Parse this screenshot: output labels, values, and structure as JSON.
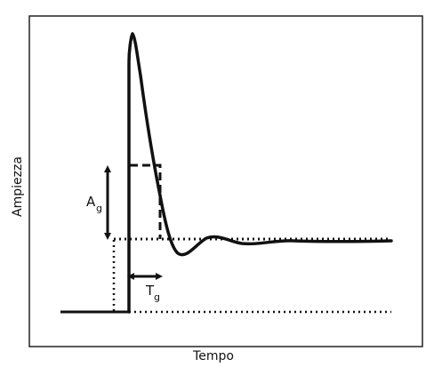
{
  "axis": {
    "x_label": "Tempo",
    "y_label": "Ampiezza"
  },
  "annotations": {
    "amplitude_label": "A",
    "amplitude_subscript": "g",
    "time_label": "T",
    "time_subscript": "g"
  },
  "colors": {
    "ink": "#111111",
    "frame": "#222222",
    "background": "#ffffff"
  }
}
